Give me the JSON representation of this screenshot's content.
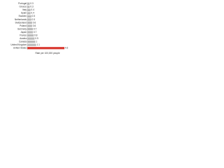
{
  "chart_data": {
    "type": "bar",
    "orientation": "horizontal",
    "x_label": "Rate per 100,000 people",
    "categories": [
      "Portugal",
      "Greece",
      "Italy",
      "Spain",
      "Sweden",
      "Netherlands",
      "Switzerland",
      "Poland",
      "Germany",
      "Japan",
      "France",
      "Austria",
      "Canada",
      "United Kingdom",
      "United States"
    ],
    "values": [
      0.3,
      0.3,
      0.4,
      0.4,
      0.5,
      0.5,
      0.6,
      0.6,
      0.7,
      0.7,
      0.8,
      0.9,
      1.0,
      1.1,
      4.6
    ],
    "colors": [
      "#bbbbbb",
      "#bbbbbb",
      "#bbbbbb",
      "#bbbbbb",
      "#bbbbbb",
      "#bbbbbb",
      "#bbbbbb",
      "#bbbbbb",
      "#bbbbbb",
      "#bbbbbb",
      "#bbbbbb",
      "#bbbbbb",
      "#bbbbbb",
      "#bbbbbb",
      "#d9382f"
    ]
  }
}
